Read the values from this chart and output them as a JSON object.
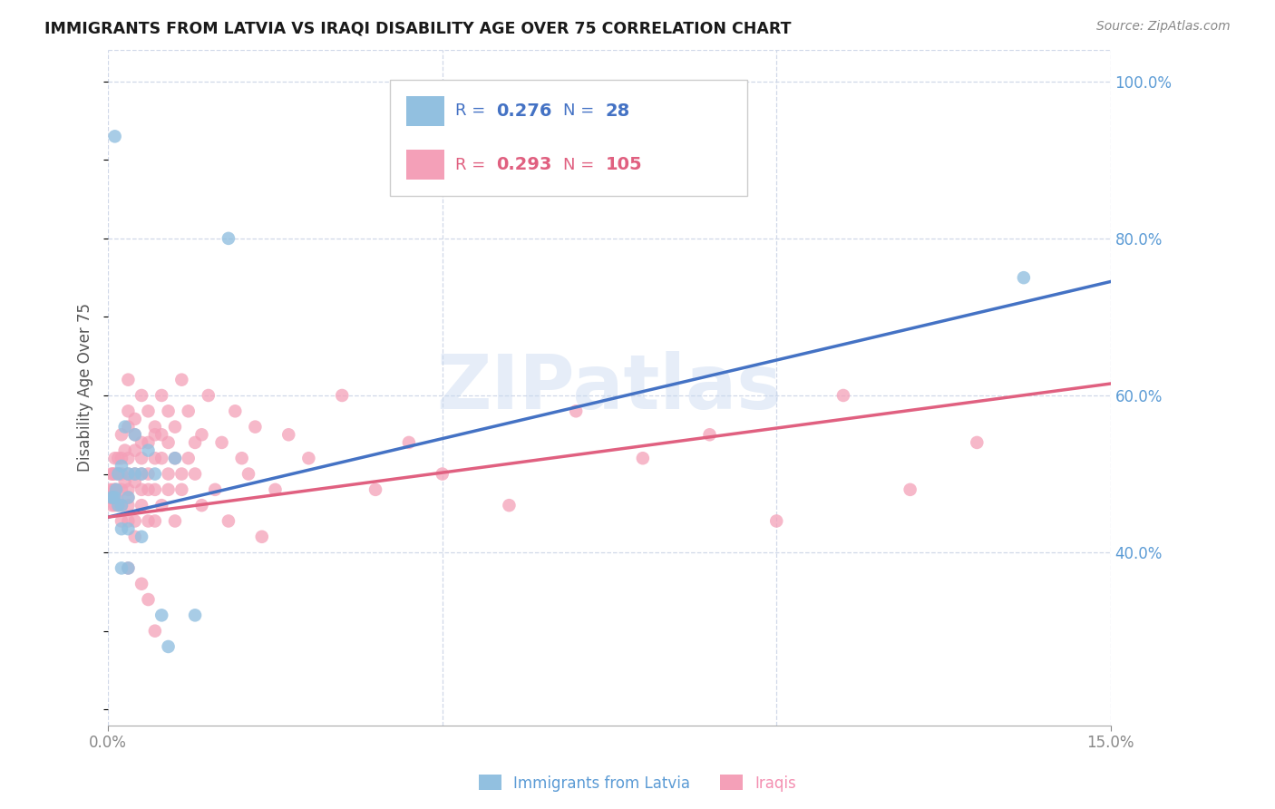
{
  "title": "IMMIGRANTS FROM LATVIA VS IRAQI DISABILITY AGE OVER 75 CORRELATION CHART",
  "source": "Source: ZipAtlas.com",
  "ylabel": "Disability Age Over 75",
  "xlim": [
    0.0,
    0.15
  ],
  "ylim": [
    0.18,
    1.04
  ],
  "yticks": [
    0.4,
    0.6,
    0.8,
    1.0
  ],
  "blue_color": "#92c0e0",
  "pink_color": "#f4a0b8",
  "blue_line_color": "#4472c4",
  "pink_line_color": "#e06080",
  "background_color": "#ffffff",
  "grid_color": "#d0d8e8",
  "watermark_text": "ZIPatlas",
  "latvia_x": [
    0.0005,
    0.0008,
    0.001,
    0.001,
    0.0012,
    0.0015,
    0.0015,
    0.002,
    0.002,
    0.002,
    0.0025,
    0.003,
    0.003,
    0.003,
    0.003,
    0.004,
    0.004,
    0.005,
    0.005,
    0.006,
    0.007,
    0.008,
    0.009,
    0.01,
    0.013,
    0.018,
    0.137,
    0.002
  ],
  "latvia_y": [
    0.47,
    0.47,
    0.93,
    0.47,
    0.48,
    0.5,
    0.46,
    0.51,
    0.46,
    0.43,
    0.56,
    0.5,
    0.47,
    0.43,
    0.38,
    0.5,
    0.55,
    0.5,
    0.42,
    0.53,
    0.5,
    0.32,
    0.28,
    0.52,
    0.32,
    0.8,
    0.75,
    0.38
  ],
  "iraq_x": [
    0.0002,
    0.0003,
    0.0005,
    0.0005,
    0.0006,
    0.0007,
    0.0008,
    0.0008,
    0.001,
    0.001,
    0.001,
    0.001,
    0.0012,
    0.0012,
    0.0015,
    0.0015,
    0.0015,
    0.002,
    0.002,
    0.002,
    0.002,
    0.002,
    0.002,
    0.0025,
    0.0025,
    0.003,
    0.003,
    0.003,
    0.003,
    0.003,
    0.003,
    0.003,
    0.003,
    0.003,
    0.004,
    0.004,
    0.004,
    0.004,
    0.004,
    0.004,
    0.005,
    0.005,
    0.005,
    0.005,
    0.005,
    0.005,
    0.006,
    0.006,
    0.006,
    0.006,
    0.006,
    0.007,
    0.007,
    0.007,
    0.007,
    0.007,
    0.008,
    0.008,
    0.008,
    0.008,
    0.009,
    0.009,
    0.009,
    0.009,
    0.01,
    0.01,
    0.01,
    0.011,
    0.011,
    0.011,
    0.012,
    0.012,
    0.013,
    0.013,
    0.014,
    0.014,
    0.015,
    0.016,
    0.017,
    0.018,
    0.019,
    0.02,
    0.021,
    0.022,
    0.023,
    0.025,
    0.027,
    0.03,
    0.035,
    0.04,
    0.045,
    0.05,
    0.06,
    0.07,
    0.08,
    0.09,
    0.1,
    0.11,
    0.12,
    0.13,
    0.003,
    0.004,
    0.005,
    0.006,
    0.007
  ],
  "iraq_y": [
    0.47,
    0.48,
    0.47,
    0.5,
    0.46,
    0.5,
    0.47,
    0.48,
    0.5,
    0.46,
    0.48,
    0.52,
    0.47,
    0.48,
    0.52,
    0.5,
    0.46,
    0.55,
    0.52,
    0.48,
    0.5,
    0.44,
    0.46,
    0.53,
    0.49,
    0.56,
    0.52,
    0.48,
    0.58,
    0.44,
    0.62,
    0.46,
    0.5,
    0.47,
    0.57,
    0.53,
    0.49,
    0.55,
    0.5,
    0.44,
    0.6,
    0.5,
    0.54,
    0.46,
    0.52,
    0.48,
    0.58,
    0.48,
    0.54,
    0.5,
    0.44,
    0.56,
    0.44,
    0.52,
    0.55,
    0.48,
    0.6,
    0.52,
    0.46,
    0.55,
    0.5,
    0.54,
    0.48,
    0.58,
    0.52,
    0.44,
    0.56,
    0.5,
    0.62,
    0.48,
    0.58,
    0.52,
    0.54,
    0.5,
    0.46,
    0.55,
    0.6,
    0.48,
    0.54,
    0.44,
    0.58,
    0.52,
    0.5,
    0.56,
    0.42,
    0.48,
    0.55,
    0.52,
    0.6,
    0.48,
    0.54,
    0.5,
    0.46,
    0.58,
    0.52,
    0.55,
    0.44,
    0.6,
    0.48,
    0.54,
    0.38,
    0.42,
    0.36,
    0.34,
    0.3
  ],
  "line_blue_y0": 0.445,
  "line_blue_y1": 0.745,
  "line_pink_y0": 0.445,
  "line_pink_y1": 0.615
}
